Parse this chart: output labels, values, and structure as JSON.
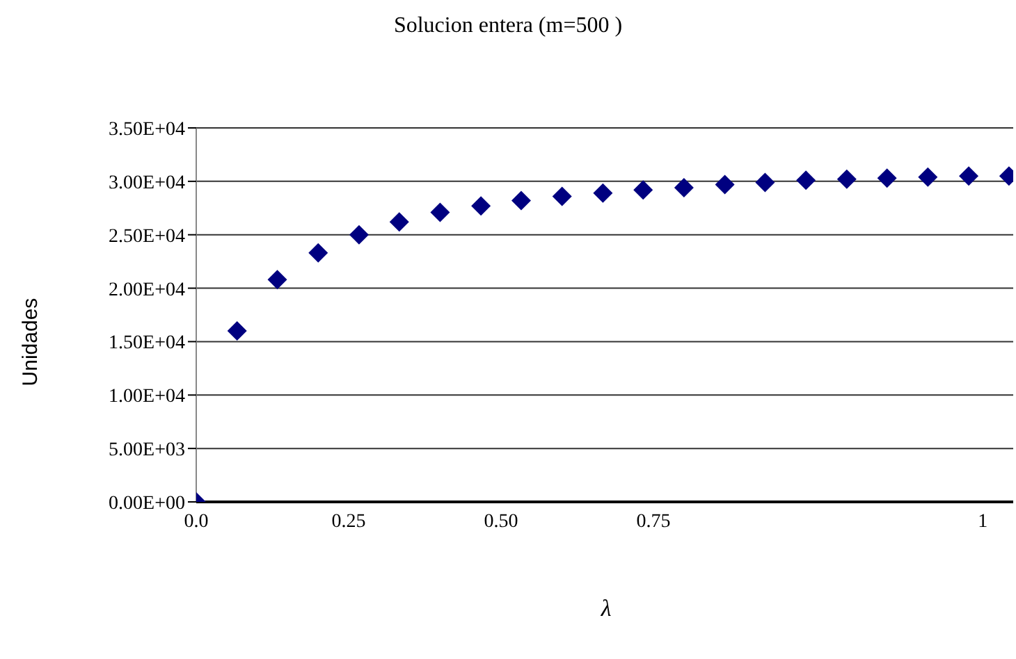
{
  "chart_data": {
    "type": "scatter",
    "title": "Solucion entera (m=500 )",
    "xlabel": "λ",
    "ylabel": "Unidades",
    "x": [
      0,
      0.067,
      0.133,
      0.2,
      0.267,
      0.333,
      0.4,
      0.467,
      0.533,
      0.6,
      0.667,
      0.733,
      0.8,
      0.867,
      0.933,
      1.0,
      1.067,
      1.133,
      1.2,
      1.267,
      1.333
    ],
    "series": [
      {
        "color": "#000080",
        "values": [
          0,
          16000,
          20800,
          23300,
          25000,
          26200,
          27100,
          27700,
          28200,
          28600,
          28900,
          29200,
          29400,
          29700,
          29900,
          30100,
          30200,
          30300,
          30400,
          30500,
          30500
        ]
      }
    ],
    "xlim": [
      0,
      1.34
    ],
    "xticks": [
      {
        "value": 0,
        "label": "0.0"
      },
      0.25,
      {
        "value": 0.5,
        "label": "0.50"
      },
      0.75,
      {
        "value": 1.29,
        "label": "1"
      }
    ],
    "ylim": [
      0,
      35000
    ],
    "yticks": [
      {
        "value": 0,
        "label": "0.00E+00"
      },
      {
        "value": 5000,
        "label": "5.00E+03"
      },
      {
        "value": 10000,
        "label": "1.00E+04"
      },
      {
        "value": 15000,
        "label": "1.50E+04"
      },
      {
        "value": 20000,
        "label": "2.00E+04"
      },
      {
        "value": 25000,
        "label": "2.50E+04"
      },
      {
        "value": 30000,
        "label": "3.00E+04"
      },
      {
        "value": 35000,
        "label": "3.50E+04"
      }
    ],
    "grid": "y",
    "marker": "diamond",
    "legend": false
  }
}
